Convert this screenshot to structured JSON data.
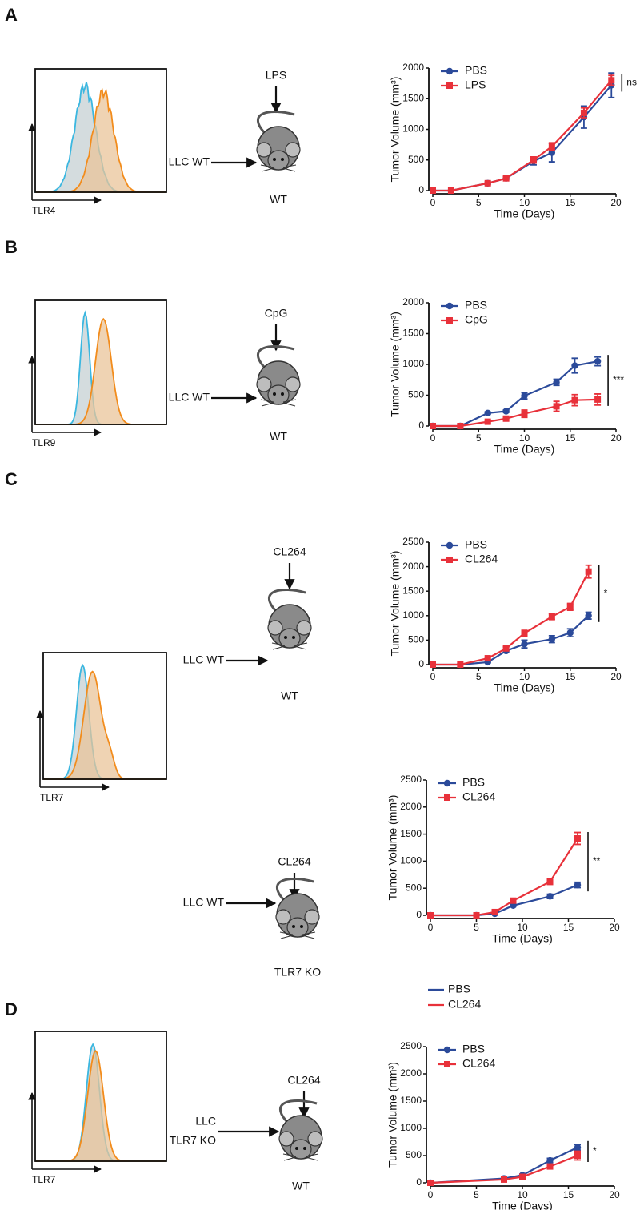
{
  "chart_data": [
    {
      "type": "line",
      "xlabel": "Time (Days)",
      "ylabel": "Tumor Volume (mm³)",
      "xlim": [
        0,
        20
      ],
      "xticks": [
        0,
        5,
        10,
        15,
        20
      ],
      "ylim": [
        0,
        2000
      ],
      "yticks": [
        0,
        500,
        1000,
        1500,
        2000
      ],
      "annotation": "ns",
      "x": [
        0,
        2,
        6,
        8,
        11,
        13,
        16.5,
        19.5
      ],
      "series": [
        {
          "name": "PBS",
          "color": "#2b4a9a",
          "marker": "circle",
          "values": [
            0,
            0,
            120,
            200,
            480,
            620,
            1200,
            1720
          ],
          "errors": [
            0,
            0,
            20,
            20,
            60,
            150,
            180,
            200
          ]
        },
        {
          "name": "LPS",
          "color": "#e8313a",
          "marker": "square",
          "values": [
            0,
            0,
            120,
            200,
            500,
            720,
            1270,
            1800
          ],
          "errors": [
            0,
            0,
            20,
            20,
            50,
            60,
            80,
            80
          ]
        }
      ]
    },
    {
      "type": "line",
      "xlabel": "Time (Days)",
      "ylabel": "Tumor Volume (mm³)",
      "xlim": [
        0,
        20
      ],
      "xticks": [
        0,
        5,
        10,
        15,
        20
      ],
      "ylim": [
        0,
        2000
      ],
      "yticks": [
        0,
        500,
        1000,
        1500,
        2000
      ],
      "annotation": "***",
      "x": [
        0,
        3,
        6,
        8,
        10,
        13.5,
        15.5,
        18
      ],
      "series": [
        {
          "name": "PBS",
          "color": "#2b4a9a",
          "marker": "circle",
          "values": [
            0,
            0,
            210,
            240,
            490,
            710,
            980,
            1050
          ],
          "errors": [
            0,
            0,
            20,
            20,
            50,
            50,
            120,
            70
          ]
        },
        {
          "name": "CpG",
          "color": "#e8313a",
          "marker": "square",
          "values": [
            0,
            0,
            70,
            120,
            200,
            320,
            420,
            430
          ],
          "errors": [
            0,
            0,
            20,
            20,
            60,
            80,
            90,
            90
          ]
        }
      ]
    },
    {
      "type": "line",
      "xlabel": "Time (Days)",
      "ylabel": "Tumor Volume (mm³)",
      "xlim": [
        0,
        20
      ],
      "xticks": [
        0,
        5,
        10,
        15,
        20
      ],
      "ylim": [
        0,
        2500
      ],
      "yticks": [
        0,
        500,
        1000,
        1500,
        2000,
        2500
      ],
      "annotation": "*",
      "x": [
        0,
        3,
        6,
        8,
        10,
        13,
        15,
        17
      ],
      "series": [
        {
          "name": "PBS",
          "color": "#2b4a9a",
          "marker": "circle",
          "values": [
            0,
            0,
            50,
            280,
            420,
            520,
            650,
            1000
          ],
          "errors": [
            0,
            0,
            10,
            30,
            80,
            70,
            80,
            70
          ]
        },
        {
          "name": "CL264",
          "color": "#e8313a",
          "marker": "square",
          "values": [
            0,
            0,
            130,
            330,
            640,
            980,
            1180,
            1900
          ],
          "errors": [
            0,
            0,
            20,
            30,
            60,
            60,
            70,
            130
          ]
        }
      ]
    },
    {
      "type": "line",
      "xlabel": "Time (Days)",
      "ylabel": "Tumor Volume (mm³)",
      "xlim": [
        0,
        20
      ],
      "xticks": [
        0,
        5,
        10,
        15,
        20
      ],
      "ylim": [
        0,
        2500
      ],
      "yticks": [
        0,
        500,
        1000,
        1500,
        2000,
        2500
      ],
      "annotation": "**",
      "x": [
        0,
        5,
        7,
        9,
        13,
        16
      ],
      "series": [
        {
          "name": "PBS",
          "color": "#2b4a9a",
          "marker": "circle",
          "values": [
            0,
            0,
            30,
            180,
            350,
            560
          ],
          "errors": [
            0,
            0,
            10,
            20,
            40,
            50
          ]
        },
        {
          "name": "CL264",
          "color": "#e8313a",
          "marker": "square",
          "values": [
            0,
            0,
            60,
            270,
            620,
            1420
          ],
          "errors": [
            0,
            0,
            10,
            30,
            50,
            110
          ]
        }
      ]
    },
    {
      "type": "line",
      "xlabel": "Time (Days)",
      "ylabel": "Tumor Volume (mm³)",
      "xlim": [
        0,
        20
      ],
      "xticks": [
        0,
        5,
        10,
        15,
        20
      ],
      "ylim": [
        0,
        2500
      ],
      "yticks": [
        0,
        500,
        1000,
        1500,
        2000,
        2500
      ],
      "annotation": "*",
      "x": [
        0,
        8,
        10,
        13,
        16
      ],
      "series": [
        {
          "name": "PBS",
          "color": "#2b4a9a",
          "marker": "circle",
          "values": [
            0,
            80,
            140,
            410,
            650
          ],
          "errors": [
            0,
            10,
            20,
            40,
            50
          ]
        },
        {
          "name": "CL264",
          "color": "#e8313a",
          "marker": "square",
          "values": [
            0,
            60,
            110,
            300,
            500
          ],
          "errors": [
            0,
            10,
            20,
            40,
            80
          ]
        }
      ]
    }
  ],
  "panels": [
    {
      "letter": "A",
      "histogram_label": "TLR4",
      "diagrams": [
        {
          "treatment": "LPS",
          "cells": [
            "LLC WT"
          ],
          "host": "WT"
        }
      ]
    },
    {
      "letter": "B",
      "histogram_label": "TLR9",
      "diagrams": [
        {
          "treatment": "CpG",
          "cells": [
            "LLC WT"
          ],
          "host": "WT"
        }
      ]
    },
    {
      "letter": "C",
      "histogram_label": "TLR7",
      "diagrams": [
        {
          "treatment": "CL264",
          "cells": [
            "LLC WT"
          ],
          "host": "WT"
        },
        {
          "treatment": "CL264",
          "cells": [
            "LLC WT"
          ],
          "host": "TLR7 KO"
        }
      ]
    },
    {
      "letter": "D",
      "histogram_label": "TLR7",
      "legend": [
        "PBS",
        "CL264"
      ],
      "diagrams": [
        {
          "treatment": "CL264",
          "cells": [
            "LLC",
            "TLR7 KO"
          ],
          "host": "WT"
        }
      ]
    }
  ]
}
